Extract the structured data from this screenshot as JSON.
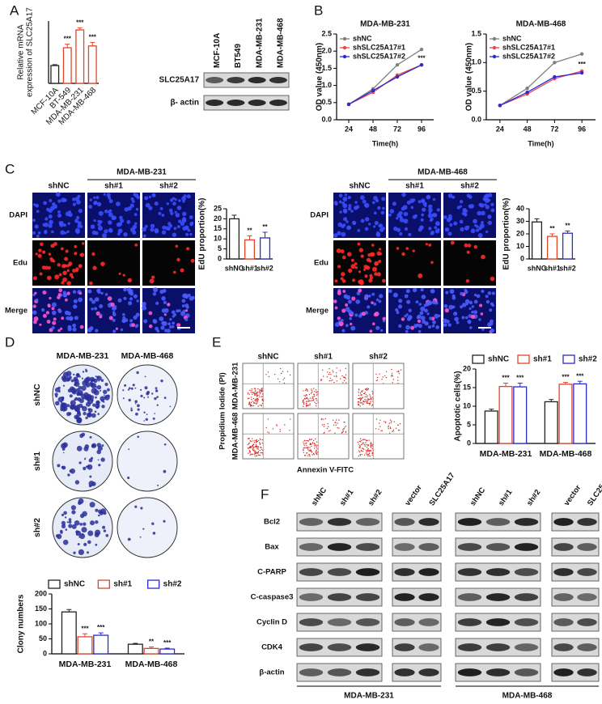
{
  "panel_labels": [
    "A",
    "B",
    "C",
    "D",
    "E",
    "F"
  ],
  "blot_A": {
    "lanes": [
      "MCF-10A",
      "BT549",
      "MDA-MB-231",
      "MDA-MB-468"
    ],
    "rows": [
      "SLC25A17",
      "β- actin"
    ]
  },
  "panel_C": {
    "groups": [
      "MDA-MB-231",
      "MDA-MB-468"
    ],
    "columns": [
      "shNC",
      "sh#1",
      "sh#2"
    ],
    "rows": [
      "DAPI",
      "Edu",
      "Merge"
    ]
  },
  "panel_D": {
    "columns": [
      "MDA-MB-231",
      "MDA-MB-468"
    ],
    "rows": [
      "shNC",
      "sh#1",
      "sh#2"
    ]
  },
  "panel_E": {
    "columns": [
      "shNC",
      "sh#1",
      "sh#2"
    ],
    "rows": [
      "MDA-MB-231",
      "MDA-MB-468"
    ],
    "y_label": "Propidium Iodide (PI)",
    "x_label": "Annexin V-FITC"
  },
  "panel_F": {
    "lanes": [
      "shNC",
      "sh#1",
      "sh#2",
      "vector",
      "SLC25A17"
    ],
    "rows": [
      "Bcl2",
      "Bax",
      "C-PARP",
      "C-caspase3",
      "Cyclin D",
      "CDK4",
      "β-actin"
    ],
    "cell_lines": [
      "MDA-MB-231",
      "MDA-MB-468"
    ]
  },
  "chart_data": [
    {
      "type": "bar",
      "y_label": [
        "Relative mRNA",
        "expression of SLC25A17"
      ],
      "categories": [
        "MCF-10A",
        "BT-549",
        "MDA-MB-231",
        "MDA-MB-468"
      ],
      "values": [
        1.0,
        2.0,
        3.0,
        2.1
      ],
      "errors": [
        0.05,
        0.2,
        0.12,
        0.2
      ],
      "annotations": [
        null,
        "***",
        "***",
        "***"
      ],
      "colors": [
        "#222222",
        "#e0452b",
        "#e0452b",
        "#e0452b"
      ],
      "bar_style": "outline",
      "xtick_rotation": 45,
      "ylim": [
        0,
        3.5
      ]
    },
    {
      "type": "line",
      "title": "MDA-MB-231",
      "x_label": "Time(h)",
      "y_label": "OD value (450nm)",
      "x": [
        24,
        48,
        72,
        96
      ],
      "series": [
        {
          "name": "shNC",
          "color": "#808080",
          "values": [
            0.45,
            0.9,
            1.6,
            2.05
          ]
        },
        {
          "name": "shSLC25A17#1",
          "color": "#e8474c",
          "values": [
            0.45,
            0.8,
            1.3,
            1.6
          ]
        },
        {
          "name": "shSLC25A17#2",
          "color": "#2b2bd0",
          "values": [
            0.45,
            0.85,
            1.25,
            1.6
          ]
        }
      ],
      "annotation": "***",
      "xlim": [
        12,
        108
      ],
      "xticks": [
        24,
        48,
        72,
        96
      ],
      "ylim": [
        0,
        2.5
      ],
      "yticks": [
        {
          "value": 0,
          "label": "0.0"
        },
        0.5,
        {
          "value": 1,
          "label": "1.0"
        },
        1.5,
        {
          "value": 2,
          "label": "2.0"
        },
        2.5
      ]
    },
    {
      "type": "line",
      "title": "MDA-MB-468",
      "x_label": "Time(h)",
      "y_label": "OD value (450nm)",
      "x": [
        24,
        48,
        72,
        96
      ],
      "series": [
        {
          "name": "shNC",
          "color": "#808080",
          "values": [
            0.25,
            0.55,
            1.0,
            1.15
          ]
        },
        {
          "name": "shSLC25A17#1",
          "color": "#e8474c",
          "values": [
            0.25,
            0.45,
            0.72,
            0.85
          ]
        },
        {
          "name": "shSLC25A17#2",
          "color": "#2b2bd0",
          "values": [
            0.25,
            0.48,
            0.75,
            0.82
          ]
        }
      ],
      "annotation": "***",
      "xlim": [
        12,
        108
      ],
      "xticks": [
        24,
        48,
        72,
        96
      ],
      "ylim": [
        0,
        1.5
      ],
      "yticks": [
        {
          "value": 0,
          "label": "0.0"
        },
        0.5,
        {
          "value": 1,
          "label": "1.0"
        },
        1.5
      ]
    },
    {
      "type": "bar",
      "y_label": "EdU proportion(%)",
      "categories": [
        "shNC",
        "sh#1",
        "sh#2"
      ],
      "values": [
        20,
        9.5,
        10.5
      ],
      "errors": [
        1.8,
        2.0,
        2.8
      ],
      "annotations": [
        null,
        "**",
        "**"
      ],
      "colors": [
        "#222222",
        "#e0452b",
        "#2b2bd0"
      ],
      "bar_style": "outline",
      "ylim": [
        0,
        25
      ],
      "yticks": [
        0,
        5,
        10,
        15,
        20,
        25
      ]
    },
    {
      "type": "bar",
      "y_label": "EdU proportion(%)",
      "categories": [
        "shNC",
        "sh#1",
        "sh#2"
      ],
      "values": [
        29.5,
        18,
        20.5
      ],
      "errors": [
        2.5,
        2.0,
        1.8
      ],
      "annotations": [
        null,
        "**",
        "**"
      ],
      "colors": [
        "#222222",
        "#e0452b",
        "#2b2bd0"
      ],
      "bar_style": "outline",
      "ylim": [
        0,
        40
      ],
      "yticks": [
        0,
        10,
        20,
        30,
        40
      ]
    },
    {
      "type": "grouped_bar",
      "y_label": "Clony numbers",
      "categories": [
        "MDA-MB-231",
        "MDA-MB-468"
      ],
      "series": [
        {
          "name": "shNC",
          "color": "#222222",
          "values": [
            140,
            32
          ],
          "errors": [
            8,
            3
          ]
        },
        {
          "name": "sh#1",
          "color": "#e0452b",
          "values": [
            57,
            18
          ],
          "errors": [
            10,
            5
          ],
          "annotations": [
            "***",
            "**"
          ]
        },
        {
          "name": "sh#2",
          "color": "#2b2bd0",
          "values": [
            62,
            16
          ],
          "errors": [
            8,
            3
          ],
          "annotations": [
            "***",
            "***"
          ]
        }
      ],
      "bar_style": "outline",
      "ylim": [
        0,
        200
      ],
      "yticks": [
        0,
        50,
        100,
        150,
        200
      ]
    },
    {
      "type": "grouped_bar",
      "y_label": "Apoptotic cells(%)",
      "categories": [
        "MDA-MB-231",
        "MDA-MB-468"
      ],
      "series": [
        {
          "name": "shNC",
          "color": "#222222",
          "values": [
            8.7,
            11.2
          ],
          "errors": [
            0.5,
            0.6
          ]
        },
        {
          "name": "sh#1",
          "color": "#e0452b",
          "values": [
            15.3,
            15.9
          ],
          "errors": [
            0.9,
            0.5
          ],
          "annotations": [
            "***",
            "***"
          ]
        },
        {
          "name": "sh#2",
          "color": "#2b2bd0",
          "values": [
            15.2,
            16
          ],
          "errors": [
            1.0,
            0.7
          ],
          "annotations": [
            "***",
            "***"
          ]
        }
      ],
      "bar_style": "outline",
      "ylim": [
        0,
        20
      ],
      "yticks": [
        0,
        5,
        10,
        15,
        20
      ]
    }
  ]
}
